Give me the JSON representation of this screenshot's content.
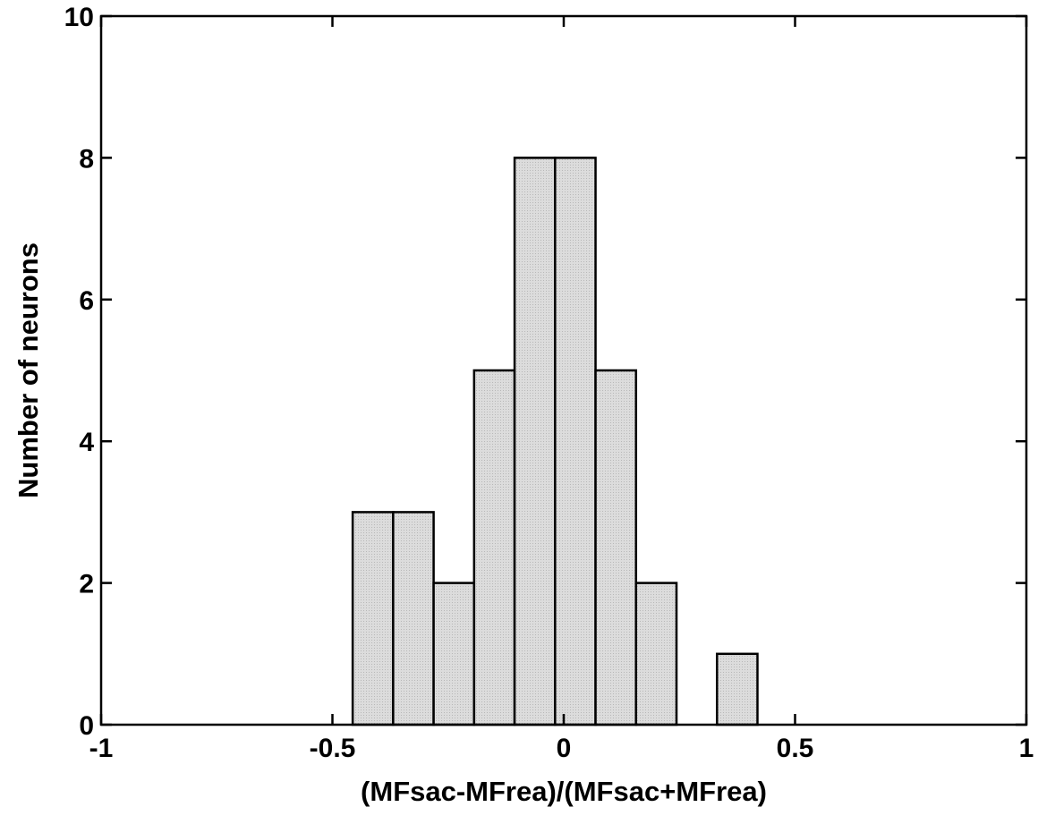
{
  "chart_data": {
    "type": "bar",
    "xlabel": "(MFsac-MFrea)/(MFsac+MFrea)",
    "ylabel": "Number of neurons",
    "xlim": [
      -1,
      1
    ],
    "ylim": [
      0,
      10
    ],
    "x_ticks": [
      -1,
      -0.5,
      0,
      0.5,
      1
    ],
    "x_tick_labels": [
      "-1",
      "-0.5",
      "0",
      "0.5",
      "1"
    ],
    "y_ticks": [
      0,
      2,
      4,
      6,
      8,
      10
    ],
    "y_tick_labels": [
      "0",
      "2",
      "4",
      "6",
      "8",
      "10"
    ],
    "bin_width": 0.0875,
    "bin_centers": [
      -0.4125,
      -0.325,
      -0.2375,
      -0.15,
      -0.0625,
      0.025,
      0.1125,
      0.2,
      0.375
    ],
    "values": [
      3,
      3,
      2,
      5,
      8,
      8,
      5,
      2,
      1
    ],
    "grid": false,
    "bar_color": "#d9d9d9",
    "edge_color": "#000000"
  }
}
